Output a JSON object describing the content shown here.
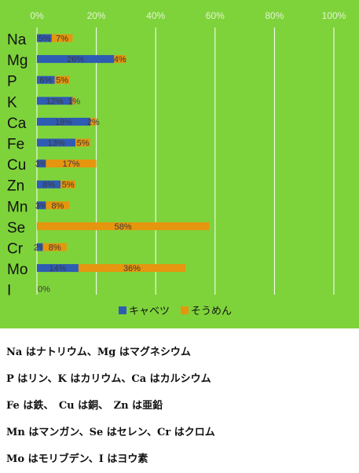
{
  "chart_data": {
    "type": "bar",
    "orientation": "horizontal",
    "stacked": true,
    "categories": [
      "Na",
      "Mg",
      "P",
      "K",
      "Ca",
      "Fe",
      "Cu",
      "Zn",
      "Mn",
      "Se",
      "Cr",
      "Mo",
      "I"
    ],
    "series": [
      {
        "name": "キャベツ",
        "color": "#2f5cb3",
        "values": [
          5,
          26,
          6,
          12,
          18,
          13,
          3,
          8,
          3,
          0,
          2,
          14,
          0
        ],
        "labels": [
          "5%",
          "26%",
          "6%",
          "12%",
          "18%",
          "13%",
          "3%",
          "8%",
          "3%",
          "0%",
          "2%",
          "14%",
          "0%"
        ]
      },
      {
        "name": "そうめん",
        "color": "#e6950e",
        "values": [
          7,
          4,
          5,
          1,
          2,
          5,
          17,
          5,
          8,
          58,
          8,
          36,
          null
        ],
        "labels": [
          "7%",
          "4%",
          "5%",
          "1%",
          "2%",
          "5%",
          "17%",
          "5%",
          "8%",
          "58%",
          "8%",
          "36%",
          ""
        ]
      }
    ],
    "xaxis": {
      "min": 0,
      "max": 100,
      "ticks": [
        "0%",
        "20%",
        "40%",
        "60%",
        "80%",
        "100%"
      ],
      "position": "top"
    },
    "grid": true,
    "legend": "bottom",
    "background": "#7ed33b"
  },
  "notes": [
    "Na はナトリウム、Mg はマグネシウム",
    "P はリン、K はカリウム、Ca はカルシウム",
    "Fe は鉄、　Cu は銅、　Zn は亜鉛",
    "Mn はマンガン、Se はセレン、Cr はクロム",
    "Mo はモリブデン、I はヨウ素"
  ]
}
